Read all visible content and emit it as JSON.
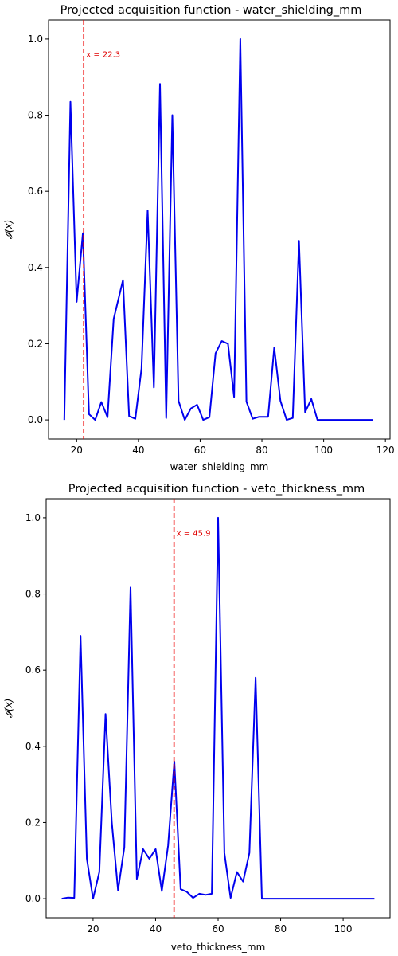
{
  "chart_data": [
    {
      "type": "line",
      "title": "Projected acquisition function - water_shielding_mm",
      "xlabel": "water_shielding_mm",
      "ylabel": "𝓘(x)",
      "xlim": [
        10.9,
        121.5
      ],
      "ylim": [
        -0.05,
        1.05
      ],
      "xticks": [
        20,
        40,
        60,
        80,
        100,
        120
      ],
      "yticks": [
        0.0,
        0.2,
        0.4,
        0.6,
        0.8,
        1.0
      ],
      "grid": false,
      "vline": {
        "x": 22.3,
        "label": "x = 22.3"
      },
      "series": [
        {
          "x": [
            16.0,
            18.0,
            20.0,
            22.0,
            24.0,
            26.0,
            28.0,
            30.0,
            32.0,
            35.0,
            37.0,
            39.0,
            41.0,
            43.0,
            45.0,
            47.0,
            49.0,
            51.0,
            53.0,
            55.0,
            57.0,
            59.0,
            61.0,
            63.0,
            65.0,
            67.0,
            69.0,
            71.0,
            73.0,
            75.0,
            77.0,
            79.0,
            82.0,
            84.0,
            86.0,
            88.0,
            90.0,
            92.0,
            94.0,
            96.0,
            98.0,
            100.0,
            102.0,
            104.0,
            106.0,
            108.0,
            110.0,
            112.0,
            114.0,
            116.0
          ],
          "values": [
            0.0,
            0.835,
            0.31,
            0.49,
            0.015,
            0.0,
            0.047,
            0.007,
            0.265,
            0.367,
            0.01,
            0.003,
            0.135,
            0.55,
            0.085,
            0.882,
            0.005,
            0.8,
            0.05,
            0.0,
            0.03,
            0.04,
            0.0,
            0.007,
            0.175,
            0.207,
            0.2,
            0.06,
            1.0,
            0.048,
            0.003,
            0.008,
            0.008,
            0.19,
            0.05,
            0.0,
            0.005,
            0.47,
            0.02,
            0.055,
            0.0,
            0.0,
            0.0,
            0.0,
            0.0,
            0.0,
            0.0,
            0.0,
            0.0,
            0.0
          ]
        }
      ]
    },
    {
      "type": "line",
      "title": "Projected acquisition function - veto_thickness_mm",
      "xlabel": "veto_thickness_mm",
      "ylabel": "𝓘(x)",
      "xlim": [
        5.0,
        115.0
      ],
      "ylim": [
        -0.05,
        1.05
      ],
      "xticks": [
        20,
        40,
        60,
        80,
        100
      ],
      "yticks": [
        0.0,
        0.2,
        0.4,
        0.6,
        0.8,
        1.0
      ],
      "grid": false,
      "vline": {
        "x": 45.9,
        "label": "x = 45.9"
      },
      "series": [
        {
          "x": [
            10.0,
            12.0,
            14.0,
            16.0,
            18.0,
            20.0,
            22.0,
            24.0,
            26.0,
            28.0,
            30.0,
            32.0,
            34.0,
            36.0,
            38.0,
            40.0,
            42.0,
            44.0,
            46.0,
            48.0,
            50.0,
            52.0,
            54.0,
            56.0,
            58.0,
            60.0,
            62.0,
            64.0,
            66.0,
            68.0,
            70.0,
            72.0,
            74.0,
            76.0,
            78.0,
            80.0,
            85.0,
            90.0,
            95.0,
            100.0,
            105.0,
            110.0
          ],
          "values": [
            0.0,
            0.003,
            0.002,
            0.69,
            0.105,
            0.0,
            0.07,
            0.485,
            0.2,
            0.022,
            0.135,
            0.817,
            0.052,
            0.13,
            0.105,
            0.13,
            0.02,
            0.14,
            0.36,
            0.025,
            0.018,
            0.002,
            0.013,
            0.01,
            0.013,
            1.0,
            0.12,
            0.002,
            0.07,
            0.045,
            0.12,
            0.58,
            0.0,
            0.0,
            0.0,
            0.0,
            0.0,
            0.0,
            0.0,
            0.0,
            0.0,
            0.0
          ]
        }
      ]
    }
  ]
}
